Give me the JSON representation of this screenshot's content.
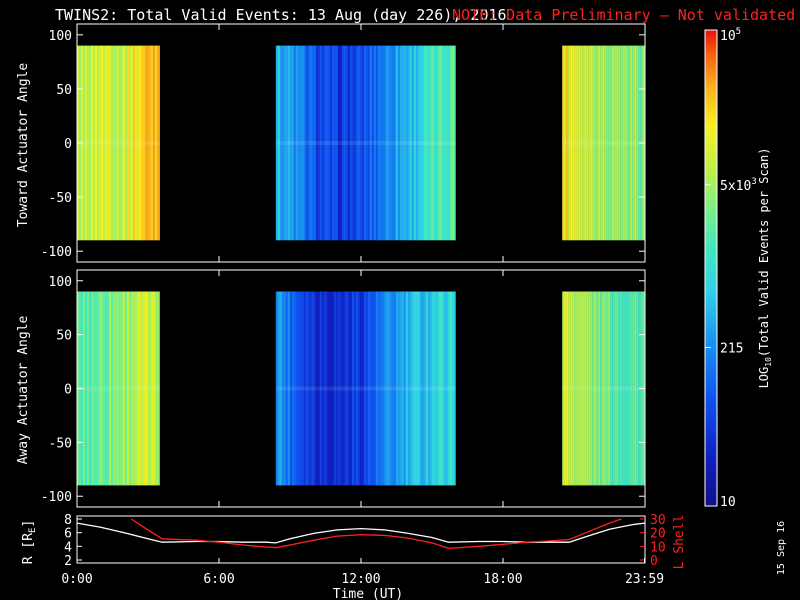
{
  "header": {
    "title": "TWINS2: Total Valid Events: 13 Aug (day 226), 2016",
    "note": "NOTE: Data Preliminary — Not validated",
    "note_color": "#ff2020"
  },
  "side_date": "15 Sep 16",
  "chart_data": [
    {
      "type": "heatmap",
      "panel": "toward",
      "ylabel": "Toward Actuator Angle",
      "ylim": [
        -110,
        110
      ],
      "yticks": [
        "100",
        "50",
        "0",
        "-50",
        "-100"
      ],
      "angle_range": [
        -90,
        90
      ],
      "data_blocks_hours": [
        [
          0.0,
          3.5
        ],
        [
          8.4,
          16.0
        ],
        [
          20.5,
          23.99
        ]
      ],
      "level_profile": [
        {
          "hour": 0.0,
          "level": 0.7
        },
        {
          "hour": 0.6,
          "level": 0.74
        },
        {
          "hour": 1.2,
          "level": 0.76
        },
        {
          "hour": 1.8,
          "level": 0.72
        },
        {
          "hour": 2.4,
          "level": 0.8
        },
        {
          "hour": 3.0,
          "level": 0.87
        },
        {
          "hour": 3.5,
          "level": 0.9
        },
        {
          "hour": 8.4,
          "level": 0.42
        },
        {
          "hour": 9.0,
          "level": 0.36
        },
        {
          "hour": 10.0,
          "level": 0.22
        },
        {
          "hour": 11.0,
          "level": 0.16
        },
        {
          "hour": 12.0,
          "level": 0.2
        },
        {
          "hour": 13.0,
          "level": 0.33
        },
        {
          "hour": 14.0,
          "level": 0.42
        },
        {
          "hour": 15.0,
          "level": 0.52
        },
        {
          "hour": 16.0,
          "level": 0.6
        },
        {
          "hour": 20.5,
          "level": 0.82
        },
        {
          "hour": 21.2,
          "level": 0.76
        },
        {
          "hour": 22.0,
          "level": 0.7
        },
        {
          "hour": 23.0,
          "level": 0.66
        },
        {
          "hour": 23.99,
          "level": 0.64
        }
      ]
    },
    {
      "type": "heatmap",
      "panel": "away",
      "ylabel": "Away Actuator Angle",
      "ylim": [
        -110,
        110
      ],
      "yticks": [
        "100",
        "50",
        "0",
        "-50",
        "-100"
      ],
      "angle_range": [
        -90,
        90
      ],
      "data_blocks_hours": [
        [
          0.0,
          3.5
        ],
        [
          8.4,
          16.0
        ],
        [
          20.5,
          23.99
        ]
      ],
      "level_profile": [
        {
          "hour": 0.0,
          "level": 0.56
        },
        {
          "hour": 0.8,
          "level": 0.6
        },
        {
          "hour": 1.6,
          "level": 0.64
        },
        {
          "hour": 2.4,
          "level": 0.7
        },
        {
          "hour": 3.0,
          "level": 0.72
        },
        {
          "hour": 3.5,
          "level": 0.68
        },
        {
          "hour": 8.4,
          "level": 0.38
        },
        {
          "hour": 9.0,
          "level": 0.28
        },
        {
          "hour": 10.0,
          "level": 0.16
        },
        {
          "hour": 11.0,
          "level": 0.14
        },
        {
          "hour": 12.0,
          "level": 0.18
        },
        {
          "hour": 13.0,
          "level": 0.3
        },
        {
          "hour": 14.0,
          "level": 0.4
        },
        {
          "hour": 15.0,
          "level": 0.46
        },
        {
          "hour": 16.0,
          "level": 0.5
        },
        {
          "hour": 20.5,
          "level": 0.74
        },
        {
          "hour": 21.2,
          "level": 0.7
        },
        {
          "hour": 22.0,
          "level": 0.62
        },
        {
          "hour": 23.0,
          "level": 0.58
        },
        {
          "hour": 23.99,
          "level": 0.56
        }
      ]
    },
    {
      "type": "line",
      "panel": "orbit",
      "ylabel_left": "R [RE]",
      "ylabel_right": "L Shell",
      "ylim_left": [
        2,
        8
      ],
      "ylim_right": [
        0,
        30
      ],
      "yticks_left": [
        "8",
        "6",
        "4",
        "2"
      ],
      "yticks_right": [
        "30",
        "20",
        "10",
        "0"
      ],
      "xlabel": "Time (UT)",
      "xticks": [
        "0:00",
        "6:00",
        "12:00",
        "18:00",
        "23:59"
      ],
      "xticks_hours": [
        0,
        6,
        12,
        18,
        23.98
      ],
      "xlim_hours": [
        0,
        24
      ],
      "series": [
        {
          "name": "R [RE]",
          "axis": "left",
          "color": "#ffffff",
          "points": [
            [
              0,
              7.4
            ],
            [
              1,
              6.8
            ],
            [
              2,
              6.0
            ],
            [
              3,
              5.1
            ],
            [
              3.6,
              4.6
            ],
            [
              5,
              4.7
            ],
            [
              6,
              4.7
            ],
            [
              7,
              4.6
            ],
            [
              8,
              4.6
            ],
            [
              8.4,
              4.5
            ],
            [
              9,
              5.1
            ],
            [
              10,
              5.9
            ],
            [
              11,
              6.4
            ],
            [
              12,
              6.6
            ],
            [
              13,
              6.4
            ],
            [
              14,
              5.9
            ],
            [
              15,
              5.3
            ],
            [
              15.7,
              4.6
            ],
            [
              17,
              4.7
            ],
            [
              18,
              4.7
            ],
            [
              19,
              4.6
            ],
            [
              20,
              4.6
            ],
            [
              20.8,
              4.6
            ],
            [
              21.5,
              5.4
            ],
            [
              22.5,
              6.5
            ],
            [
              23.5,
              7.2
            ],
            [
              24,
              7.4
            ]
          ]
        },
        {
          "name": "L Shell",
          "axis": "right",
          "color": "#ff2020",
          "points": [
            [
              2.3,
              30
            ],
            [
              3,
              22
            ],
            [
              3.6,
              15.5
            ],
            [
              5,
              14.5
            ],
            [
              6,
              13
            ],
            [
              7,
              11
            ],
            [
              8,
              9.5
            ],
            [
              8.4,
              9
            ],
            [
              9,
              11
            ],
            [
              10,
              14.5
            ],
            [
              11,
              17.5
            ],
            [
              12,
              18.5
            ],
            [
              13,
              18
            ],
            [
              14,
              16
            ],
            [
              15,
              12.5
            ],
            [
              15.7,
              8.5
            ],
            [
              17,
              10
            ],
            [
              18,
              11.5
            ],
            [
              19,
              13
            ],
            [
              20,
              14
            ],
            [
              20.8,
              15
            ],
            [
              21.5,
              20
            ],
            [
              22.5,
              27
            ],
            [
              23,
              30
            ]
          ]
        }
      ]
    }
  ],
  "colorbar": {
    "label": "LOG10(Total Valid Events per Scan)",
    "label_main": "LOG",
    "label_sub": "10",
    "label_rest": "(Total Valid Events per Scan)",
    "scale": "log",
    "range": [
      10,
      100000
    ],
    "ticks": [
      {
        "value": 100000,
        "text": "10",
        "sup": "5"
      },
      {
        "value": 5000,
        "text": "5x10",
        "sup": "3"
      },
      {
        "value": 215,
        "text": "215",
        "sup": ""
      },
      {
        "value": 10,
        "text": "10",
        "sup": ""
      }
    ]
  }
}
